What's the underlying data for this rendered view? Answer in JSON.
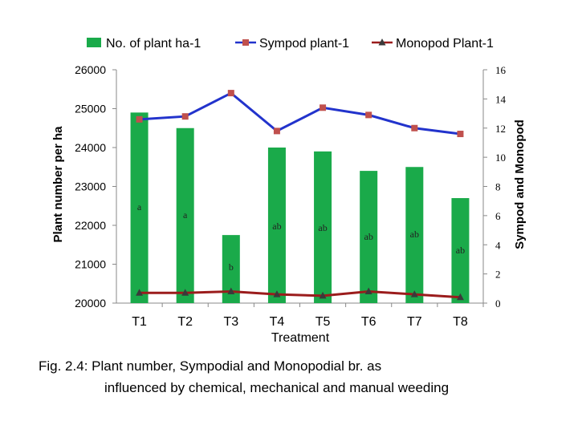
{
  "chart_data": {
    "type": "bar",
    "categories": [
      "T1",
      "T2",
      "T3",
      "T4",
      "T5",
      "T6",
      "T7",
      "T8"
    ],
    "xlabel": "Treatment",
    "ylabel": "Plant number per ha",
    "y2label": "Sympod and Monopod",
    "ylim": [
      20000,
      26000
    ],
    "y2lim": [
      0,
      16
    ],
    "y_ticks": [
      "20000",
      "21000",
      "22000",
      "23000",
      "24000",
      "25000",
      "26000"
    ],
    "y2_ticks": [
      "0",
      "2",
      "4",
      "6",
      "8",
      "10",
      "12",
      "14",
      "16"
    ],
    "grid": false,
    "legend_position": "top",
    "series": [
      {
        "name": "No. of plant ha-1",
        "kind": "bar",
        "axis": "left",
        "color": "#1aaa4a",
        "values": [
          24900,
          24500,
          21750,
          24000,
          23900,
          23400,
          23500,
          22700
        ],
        "labels": [
          "a",
          "a",
          "b",
          "ab",
          "ab",
          "ab",
          "ab",
          "ab"
        ]
      },
      {
        "name": "Sympod plant-1",
        "kind": "line",
        "axis": "right",
        "color": "#2233cc",
        "marker_color": "#c0504d",
        "marker": "square",
        "values": [
          12.6,
          12.8,
          14.4,
          11.8,
          13.4,
          12.9,
          12.0,
          11.6
        ]
      },
      {
        "name": "Monopod Plant-1",
        "kind": "line",
        "axis": "right",
        "color": "#9b1c1c",
        "marker_color": "#3a3a3a",
        "marker": "triangle",
        "values": [
          0.7,
          0.7,
          0.8,
          0.6,
          0.5,
          0.8,
          0.6,
          0.4
        ]
      }
    ]
  },
  "caption": {
    "line1": "Fig. 2.4: Plant number, Sympodial and Monopodial br. as",
    "line2": "influenced by chemical, mechanical and manual weeding"
  }
}
